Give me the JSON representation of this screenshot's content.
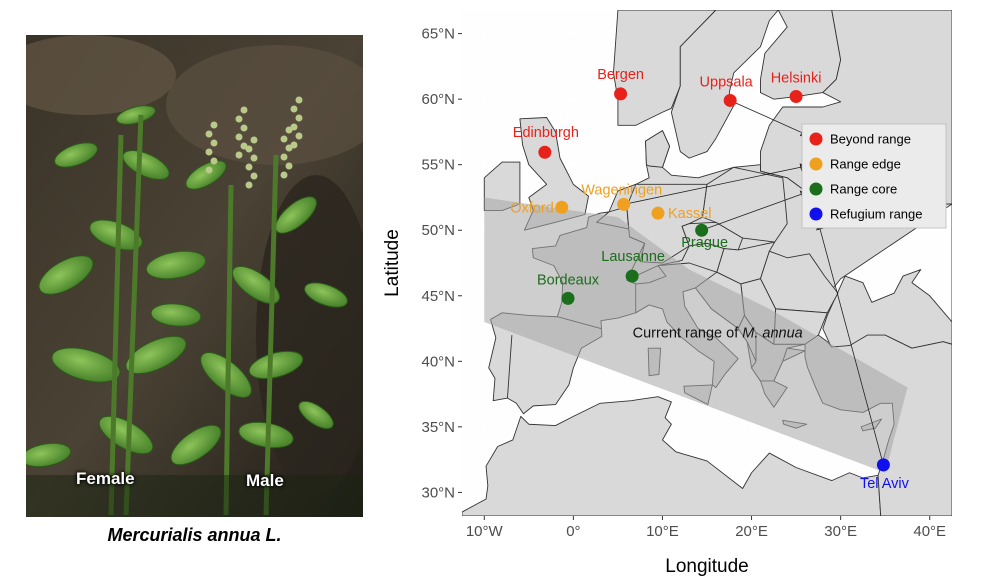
{
  "photo": {
    "caption": "Mercurialis annua L.",
    "label_female": "Female",
    "label_male": "Male"
  },
  "map": {
    "x_title": "Longitude",
    "y_title": "Latitude",
    "x_ticks": [
      {
        "value": -10,
        "label": "10°W"
      },
      {
        "value": 0,
        "label": "0°"
      },
      {
        "value": 10,
        "label": "10°E"
      },
      {
        "value": 20,
        "label": "20°E"
      },
      {
        "value": 30,
        "label": "30°E"
      },
      {
        "value": 40,
        "label": "40°E"
      }
    ],
    "y_ticks": [
      {
        "value": 30,
        "label": "30°N"
      },
      {
        "value": 35,
        "label": "35°N"
      },
      {
        "value": 40,
        "label": "40°N"
      },
      {
        "value": 45,
        "label": "45°N"
      },
      {
        "value": 50,
        "label": "50°N"
      },
      {
        "value": 55,
        "label": "55°N"
      },
      {
        "value": 60,
        "label": "60°N"
      },
      {
        "value": 65,
        "label": "65°N"
      }
    ],
    "xlim": [
      -12.5,
      42.5
    ],
    "ylim": [
      28.2,
      66.8
    ],
    "range_label_prefix": "Current range of ",
    "range_label_species": "M. annua",
    "range_polygon": [
      [
        -10,
        52.5
      ],
      [
        5,
        51
      ],
      [
        13,
        47
      ],
      [
        22,
        44
      ],
      [
        37.5,
        38
      ],
      [
        35,
        31.5
      ],
      [
        -10,
        43
      ]
    ],
    "categories": [
      {
        "key": "beyond",
        "label": "Beyond range",
        "color": "#e8221b"
      },
      {
        "key": "edge",
        "label": "Range edge",
        "color": "#f0a01f"
      },
      {
        "key": "core",
        "label": "Range core",
        "color": "#1b6e1b"
      },
      {
        "key": "refugium",
        "label": "Refugium range",
        "color": "#1010ef"
      }
    ],
    "populations": [
      {
        "name": "Bergen",
        "lon": 5.3,
        "lat": 60.4,
        "category": "beyond"
      },
      {
        "name": "Uppsala",
        "lon": 17.6,
        "lat": 59.9,
        "category": "beyond"
      },
      {
        "name": "Helsinki",
        "lon": 25.0,
        "lat": 60.2,
        "category": "beyond"
      },
      {
        "name": "Edinburgh",
        "lon": -3.2,
        "lat": 55.95,
        "category": "beyond"
      },
      {
        "name": "Oxford",
        "lon": -1.3,
        "lat": 51.75,
        "category": "edge"
      },
      {
        "name": "Wageningen",
        "lon": 5.65,
        "lat": 51.97,
        "category": "edge"
      },
      {
        "name": "Kassel",
        "lon": 9.5,
        "lat": 51.3,
        "category": "edge"
      },
      {
        "name": "Prague",
        "lon": 14.4,
        "lat": 50.0,
        "category": "core"
      },
      {
        "name": "Lausanne",
        "lon": 6.6,
        "lat": 46.5,
        "category": "core"
      },
      {
        "name": "Bordeaux",
        "lon": -0.6,
        "lat": 44.8,
        "category": "core"
      },
      {
        "name": "Tel Aviv",
        "lon": 34.8,
        "lat": 32.1,
        "category": "refugium"
      }
    ],
    "legend_arrows": [
      {
        "from_lon": 17.6,
        "from_lat": 59.9,
        "category": "beyond"
      },
      {
        "from_lon": 5.65,
        "from_lat": 51.97,
        "category": "edge"
      },
      {
        "from_lon": 14.4,
        "from_lat": 50.0,
        "category": "core"
      },
      {
        "from_lon": 34.8,
        "from_lat": 32.1,
        "category": "refugium"
      }
    ],
    "colors": {
      "panel_bg": "#ebebeb",
      "sea": "#ffffff",
      "land": "#d9d9d9",
      "border": "#333333",
      "range_fill": "#a6a6a6",
      "grid": "#ffffff"
    }
  }
}
